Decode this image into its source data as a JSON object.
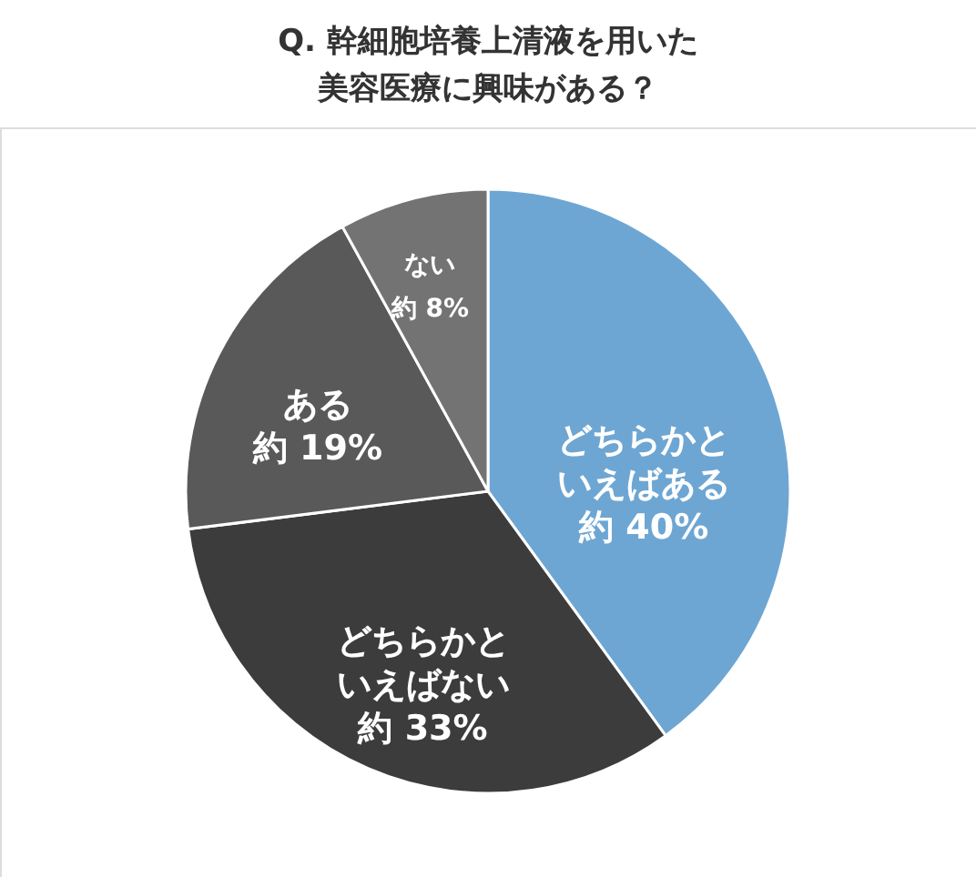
{
  "chart_data": {
    "type": "pie",
    "title": "Q. 幹細胞培養上清液を用いた美容医療に興味がある？",
    "categories": [
      "どちらかといえばある",
      "どちらかといえばない",
      "ある",
      "ない"
    ],
    "values": [
      40,
      33,
      19,
      8
    ],
    "colors": [
      "#6ea6d3",
      "#3c3c3c",
      "#595959",
      "#737373"
    ],
    "value_labels": [
      "約 40%",
      "約 33%",
      "約 19%",
      "約 8%"
    ],
    "legend": false
  }
}
